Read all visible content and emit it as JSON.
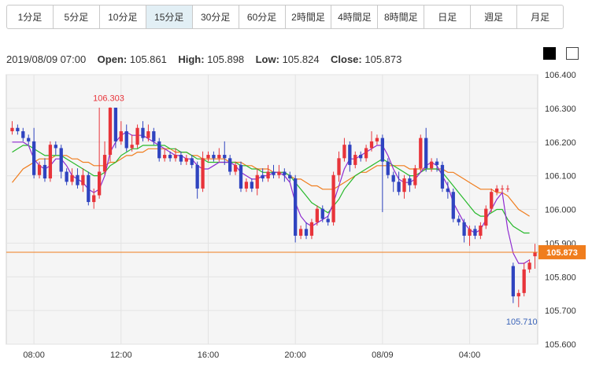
{
  "tabs": [
    {
      "label": "1分足",
      "active": false
    },
    {
      "label": "5分足",
      "active": false
    },
    {
      "label": "10分足",
      "active": false
    },
    {
      "label": "15分足",
      "active": true
    },
    {
      "label": "30分足",
      "active": false
    },
    {
      "label": "60分足",
      "active": false
    },
    {
      "label": "2時間足",
      "active": false
    },
    {
      "label": "4時間足",
      "active": false
    },
    {
      "label": "8時間足",
      "active": false
    },
    {
      "label": "日足",
      "active": false
    },
    {
      "label": "週足",
      "active": false
    },
    {
      "label": "月足",
      "active": false
    }
  ],
  "ohlc": {
    "date": "2019/08/09 07:00",
    "open_label": "Open:",
    "open": "105.861",
    "high_label": "High:",
    "high": "105.898",
    "low_label": "Low:",
    "low": "105.824",
    "close_label": "Close:",
    "close": "105.873"
  },
  "colors": {
    "up": "#e8343a",
    "down": "#2f44c0",
    "ma_short": "#8e2bd0",
    "ma_mid": "#27b92b",
    "ma_long": "#f07d1d",
    "current": "#f07d1d",
    "grid": "#e3e3e3",
    "plot_bg": "#f5f5f5",
    "high_label": "#e8343a",
    "low_label": "#3a63b8"
  },
  "icons": [
    "dark-theme-icon",
    "light-theme-icon"
  ],
  "chart_data": {
    "type": "candlestick",
    "ylim": [
      105.6,
      106.4
    ],
    "yticks": [
      "106.400",
      "106.300",
      "106.200",
      "106.100",
      "106.000",
      "105.900",
      "105.800",
      "105.700",
      "105.600"
    ],
    "xticks": [
      {
        "label": "08:00",
        "i": 4
      },
      {
        "label": "12:00",
        "i": 20
      },
      {
        "label": "16:00",
        "i": 36
      },
      {
        "label": "20:00",
        "i": 52
      },
      {
        "label": "08/09",
        "i": 68
      },
      {
        "label": "04:00",
        "i": 84
      }
    ],
    "high_annotation": {
      "label": "106.303",
      "i": 18
    },
    "low_annotation": {
      "label": "105.710",
      "i": 93
    },
    "current_price": {
      "label": "105.873",
      "value": 105.873
    },
    "candles": [
      [
        106.232,
        106.242,
        106.262,
        106.222
      ],
      [
        106.242,
        106.232,
        106.252,
        106.222
      ],
      [
        106.232,
        106.212,
        106.242,
        106.202
      ],
      [
        106.212,
        106.202,
        106.222,
        106.192
      ],
      [
        106.202,
        106.102,
        106.242,
        106.092
      ],
      [
        106.102,
        106.132,
        106.142,
        106.092
      ],
      [
        106.132,
        106.092,
        106.152,
        106.082
      ],
      [
        106.092,
        106.192,
        106.202,
        106.082
      ],
      [
        106.192,
        106.182,
        106.202,
        106.162
      ],
      [
        106.182,
        106.112,
        106.192,
        106.092
      ],
      [
        106.112,
        106.082,
        106.122,
        106.072
      ],
      [
        106.082,
        106.102,
        106.122,
        106.072
      ],
      [
        106.102,
        106.072,
        106.122,
        106.062
      ],
      [
        106.072,
        106.102,
        106.122,
        106.052
      ],
      [
        106.102,
        106.022,
        106.112,
        106.012
      ],
      [
        106.022,
        106.042,
        106.062,
        106.002
      ],
      [
        106.042,
        106.112,
        106.302,
        106.032
      ],
      [
        106.112,
        106.162,
        106.202,
        106.102
      ],
      [
        106.162,
        106.302,
        106.303,
        106.142
      ],
      [
        106.302,
        106.202,
        106.302,
        106.182
      ],
      [
        106.202,
        106.232,
        106.262,
        106.192
      ],
      [
        106.232,
        106.182,
        106.252,
        106.172
      ],
      [
        106.182,
        106.192,
        106.222,
        106.172
      ],
      [
        106.192,
        106.242,
        106.252,
        106.182
      ],
      [
        106.242,
        106.212,
        106.262,
        106.202
      ],
      [
        106.212,
        106.232,
        106.252,
        106.202
      ],
      [
        106.232,
        106.202,
        106.242,
        106.192
      ],
      [
        106.202,
        106.152,
        106.212,
        106.142
      ],
      [
        106.152,
        106.162,
        106.182,
        106.142
      ],
      [
        106.162,
        106.152,
        106.172,
        106.142
      ],
      [
        106.152,
        106.162,
        106.182,
        106.142
      ],
      [
        106.162,
        106.142,
        106.172,
        106.132
      ],
      [
        106.142,
        106.152,
        106.162,
        106.132
      ],
      [
        106.152,
        106.132,
        106.162,
        106.122
      ],
      [
        106.132,
        106.062,
        106.142,
        106.032
      ],
      [
        106.062,
        106.152,
        106.172,
        106.052
      ],
      [
        106.152,
        106.162,
        106.172,
        106.142
      ],
      [
        106.162,
        106.152,
        106.172,
        106.142
      ],
      [
        106.152,
        106.162,
        106.182,
        106.142
      ],
      [
        106.162,
        106.152,
        106.202,
        106.132
      ],
      [
        106.152,
        106.112,
        106.162,
        106.102
      ],
      [
        106.112,
        106.132,
        106.142,
        106.102
      ],
      [
        106.132,
        106.062,
        106.142,
        106.052
      ],
      [
        106.062,
        106.082,
        106.092,
        106.052
      ],
      [
        106.082,
        106.062,
        106.092,
        106.052
      ],
      [
        106.062,
        106.102,
        106.122,
        106.042
      ],
      [
        106.102,
        106.092,
        106.122,
        106.082
      ],
      [
        106.092,
        106.112,
        106.132,
        106.082
      ],
      [
        106.112,
        106.102,
        106.132,
        106.092
      ],
      [
        106.102,
        106.112,
        106.132,
        106.092
      ],
      [
        106.112,
        106.102,
        106.122,
        106.082
      ],
      [
        106.102,
        106.092,
        106.112,
        106.082
      ],
      [
        106.092,
        105.922,
        106.102,
        105.902
      ],
      [
        105.922,
        105.942,
        105.952,
        105.912
      ],
      [
        105.942,
        105.922,
        105.962,
        105.912
      ],
      [
        105.922,
        105.962,
        105.972,
        105.912
      ],
      [
        105.962,
        106.002,
        106.012,
        105.952
      ],
      [
        106.002,
        105.972,
        106.012,
        105.962
      ],
      [
        105.972,
        105.962,
        105.982,
        105.952
      ],
      [
        105.962,
        106.102,
        106.112,
        105.952
      ],
      [
        106.102,
        106.152,
        106.172,
        106.082
      ],
      [
        106.152,
        106.192,
        106.212,
        106.142
      ],
      [
        106.192,
        106.132,
        106.202,
        106.112
      ],
      [
        106.132,
        106.162,
        106.172,
        106.122
      ],
      [
        106.162,
        106.152,
        106.172,
        106.142
      ],
      [
        106.152,
        106.182,
        106.192,
        106.142
      ],
      [
        106.182,
        106.202,
        106.232,
        106.172
      ],
      [
        106.202,
        106.212,
        106.222,
        106.192
      ],
      [
        106.212,
        106.142,
        106.222,
        105.992
      ],
      [
        106.142,
        106.102,
        106.152,
        106.092
      ],
      [
        106.102,
        106.082,
        106.112,
        106.052
      ],
      [
        106.082,
        106.052,
        106.112,
        106.042
      ],
      [
        106.052,
        106.092,
        106.102,
        106.032
      ],
      [
        106.092,
        106.072,
        106.102,
        106.052
      ],
      [
        106.072,
        106.122,
        106.132,
        106.062
      ],
      [
        106.122,
        106.212,
        106.222,
        106.112
      ],
      [
        106.212,
        106.122,
        106.242,
        106.112
      ],
      [
        106.122,
        106.142,
        106.152,
        106.112
      ],
      [
        106.142,
        106.132,
        106.152,
        106.112
      ],
      [
        106.132,
        106.062,
        106.142,
        106.052
      ],
      [
        106.062,
        106.052,
        106.082,
        106.032
      ],
      [
        106.052,
        105.972,
        106.062,
        105.962
      ],
      [
        105.972,
        105.962,
        105.982,
        105.952
      ],
      [
        105.962,
        105.922,
        105.972,
        105.902
      ],
      [
        105.922,
        105.942,
        105.952,
        105.892
      ],
      [
        105.942,
        105.922,
        105.952,
        105.912
      ],
      [
        105.922,
        105.952,
        105.962,
        105.912
      ],
      [
        105.952,
        106.002,
        106.012,
        105.942
      ],
      [
        106.002,
        106.052,
        106.062,
        105.992
      ],
      [
        106.052,
        106.062,
        106.072,
        106.042
      ],
      [
        106.062,
        106.062,
        106.072,
        106.052
      ],
      [
        106.062,
        106.062,
        106.072,
        106.052
      ],
      [
        105.832,
        105.742,
        105.842,
        105.722
      ],
      [
        105.742,
        105.752,
        105.762,
        105.71
      ],
      [
        105.752,
        105.822,
        105.842,
        105.742
      ],
      [
        105.822,
        105.842,
        105.852,
        105.812
      ],
      [
        105.861,
        105.873,
        105.898,
        105.824
      ]
    ],
    "ma_short": [
      106.2,
      106.2,
      106.2,
      106.19,
      106.15,
      106.13,
      106.12,
      106.13,
      106.15,
      106.15,
      106.13,
      106.1,
      106.09,
      106.08,
      106.06,
      106.05,
      106.06,
      106.1,
      106.17,
      106.2,
      106.22,
      106.23,
      106.22,
      106.22,
      106.22,
      106.21,
      106.2,
      106.19,
      106.18,
      106.17,
      106.16,
      106.16,
      106.15,
      106.15,
      106.13,
      106.12,
      106.12,
      106.13,
      106.14,
      106.14,
      106.14,
      106.13,
      106.11,
      106.1,
      106.09,
      106.09,
      106.1,
      106.1,
      106.11,
      106.11,
      106.1,
      106.08,
      106.02,
      105.98,
      105.96,
      105.95,
      105.96,
      105.97,
      105.98,
      106.02,
      106.07,
      106.12,
      106.15,
      106.15,
      106.16,
      106.17,
      106.18,
      106.19,
      106.19,
      106.16,
      106.12,
      106.09,
      106.08,
      106.08,
      106.09,
      106.11,
      106.13,
      106.14,
      106.13,
      106.1,
      106.07,
      106.02,
      105.99,
      105.96,
      105.94,
      105.93,
      105.94,
      105.97,
      106.0,
      106.03,
      106.05,
      105.94,
      105.87,
      105.84,
      105.84,
      105.85
    ],
    "ma_mid": [
      106.17,
      106.18,
      106.19,
      106.19,
      106.18,
      106.17,
      106.16,
      106.16,
      106.16,
      106.16,
      106.15,
      106.14,
      106.13,
      106.12,
      106.11,
      106.1,
      106.1,
      106.11,
      106.13,
      106.14,
      106.16,
      106.17,
      106.18,
      106.18,
      106.19,
      106.19,
      106.19,
      106.19,
      106.19,
      106.18,
      106.18,
      106.17,
      106.17,
      106.16,
      106.15,
      106.15,
      106.14,
      106.14,
      106.14,
      106.14,
      106.14,
      106.14,
      106.13,
      106.13,
      106.12,
      106.12,
      106.11,
      106.11,
      106.11,
      106.11,
      106.11,
      106.1,
      106.08,
      106.06,
      106.04,
      106.02,
      106.01,
      106.0,
      105.99,
      106.01,
      106.03,
      106.06,
      106.08,
      106.1,
      106.11,
      106.12,
      106.13,
      106.14,
      106.15,
      106.14,
      106.13,
      106.12,
      106.11,
      106.1,
      106.1,
      106.11,
      106.12,
      106.12,
      106.12,
      106.11,
      106.09,
      106.07,
      106.05,
      106.03,
      106.01,
      105.99,
      105.98,
      105.98,
      105.99,
      106.0,
      106.0,
      105.97,
      105.95,
      105.94,
      105.93,
      105.93
    ],
    "ma_long": [
      106.08,
      106.1,
      106.12,
      106.13,
      106.14,
      106.15,
      106.15,
      106.15,
      106.16,
      106.16,
      106.16,
      106.15,
      106.15,
      106.14,
      106.14,
      106.13,
      106.13,
      106.13,
      106.14,
      106.14,
      106.15,
      106.16,
      106.16,
      106.17,
      106.17,
      106.18,
      106.18,
      106.18,
      106.18,
      106.18,
      106.17,
      106.17,
      106.17,
      106.16,
      106.16,
      106.15,
      106.15,
      106.15,
      106.15,
      106.15,
      106.14,
      106.14,
      106.14,
      106.13,
      106.13,
      106.12,
      106.12,
      106.12,
      106.11,
      106.11,
      106.11,
      106.1,
      106.09,
      106.09,
      106.08,
      106.07,
      106.07,
      106.06,
      106.06,
      106.06,
      106.07,
      106.08,
      106.09,
      106.1,
      106.11,
      106.11,
      106.12,
      106.13,
      106.13,
      106.13,
      106.13,
      106.13,
      106.13,
      106.12,
      106.12,
      106.12,
      106.12,
      106.12,
      106.12,
      106.12,
      106.11,
      106.11,
      106.1,
      106.09,
      106.08,
      106.07,
      106.06,
      106.06,
      106.06,
      106.05,
      106.05,
      106.04,
      106.02,
      106.0,
      105.99,
      105.98
    ]
  }
}
